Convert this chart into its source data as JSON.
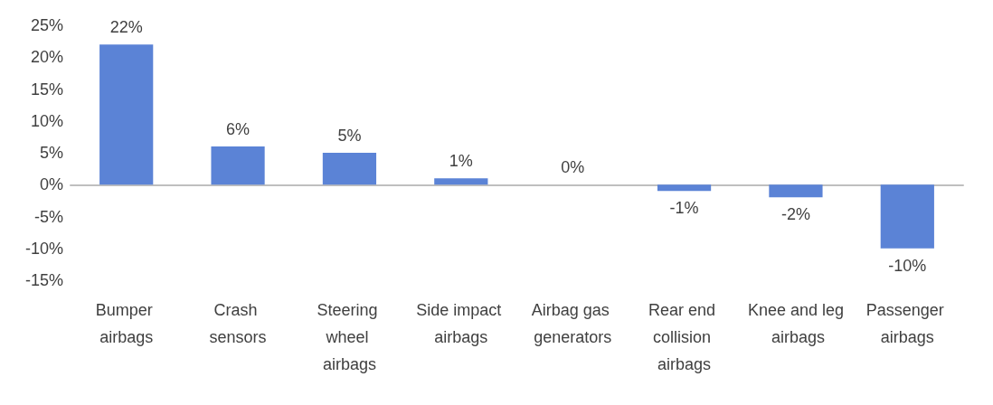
{
  "chart_data": {
    "type": "bar",
    "categories": [
      "Bumper airbags",
      "Crash sensors",
      "Steering wheel airbags",
      "Side impact airbags",
      "Airbag gas generators",
      "Rear end collision airbags",
      "Knee and leg airbags",
      "Passenger airbags"
    ],
    "values": [
      22,
      6,
      5,
      1,
      0,
      -1,
      -2,
      -10
    ],
    "value_labels": [
      "22%",
      "6%",
      "5%",
      "1%",
      "0%",
      "-1%",
      "-2%",
      "-10%"
    ],
    "color": "#5b83d6",
    "ylim": [
      -15,
      25
    ],
    "yticks": [
      {
        "value": -15,
        "label": "-15%"
      },
      {
        "value": -10,
        "label": "-10%"
      },
      {
        "value": -5,
        "label": "-5%"
      },
      {
        "value": 0,
        "label": "0%"
      },
      {
        "value": 5,
        "label": "5%"
      },
      {
        "value": 10,
        "label": "10%"
      },
      {
        "value": 15,
        "label": "15%"
      },
      {
        "value": 20,
        "label": "20%"
      },
      {
        "value": 25,
        "label": "25%"
      }
    ],
    "orientation": "vertical"
  }
}
